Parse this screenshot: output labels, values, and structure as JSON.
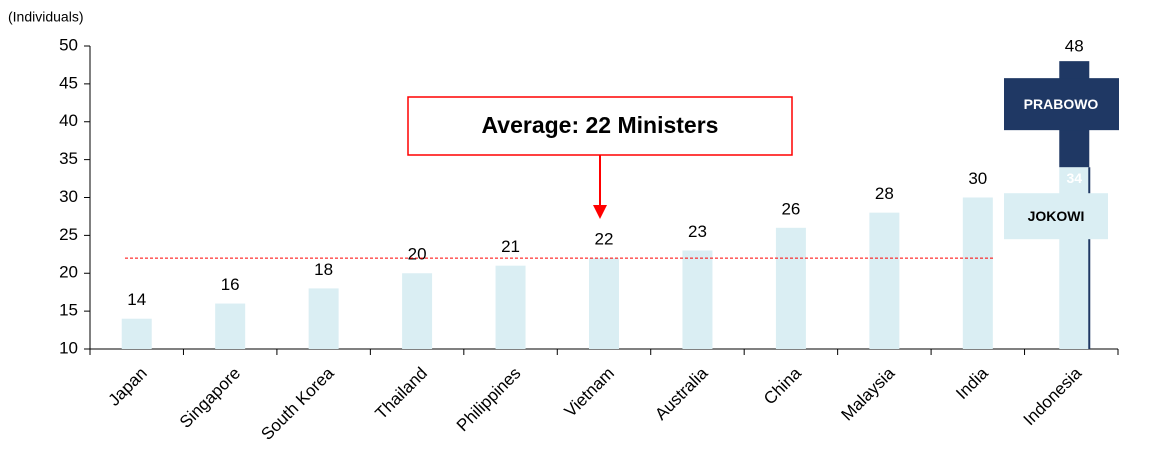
{
  "chart_data": {
    "type": "bar",
    "y_axis_label": "(Individuals)",
    "categories": [
      "Japan",
      "Singapore",
      "South Korea",
      "Thailand",
      "Philippines",
      "Vietnam",
      "Australia",
      "China",
      "Malaysia",
      "India",
      "Indonesia"
    ],
    "values": [
      14,
      16,
      18,
      20,
      21,
      22,
      23,
      26,
      28,
      30,
      48
    ],
    "color": "#daeef3",
    "ylim": [
      10,
      50
    ],
    "yticks": [
      10,
      15,
      20,
      25,
      30,
      35,
      40,
      45,
      50
    ],
    "average": {
      "value": 22,
      "label": "Average: 22 Ministers",
      "color": "#ff0000"
    },
    "indonesia": {
      "prabowo_label": "PRABOWO",
      "jokowi_label": "JOKOWI",
      "jokowi_value": 34,
      "color": "#1f3864"
    }
  }
}
